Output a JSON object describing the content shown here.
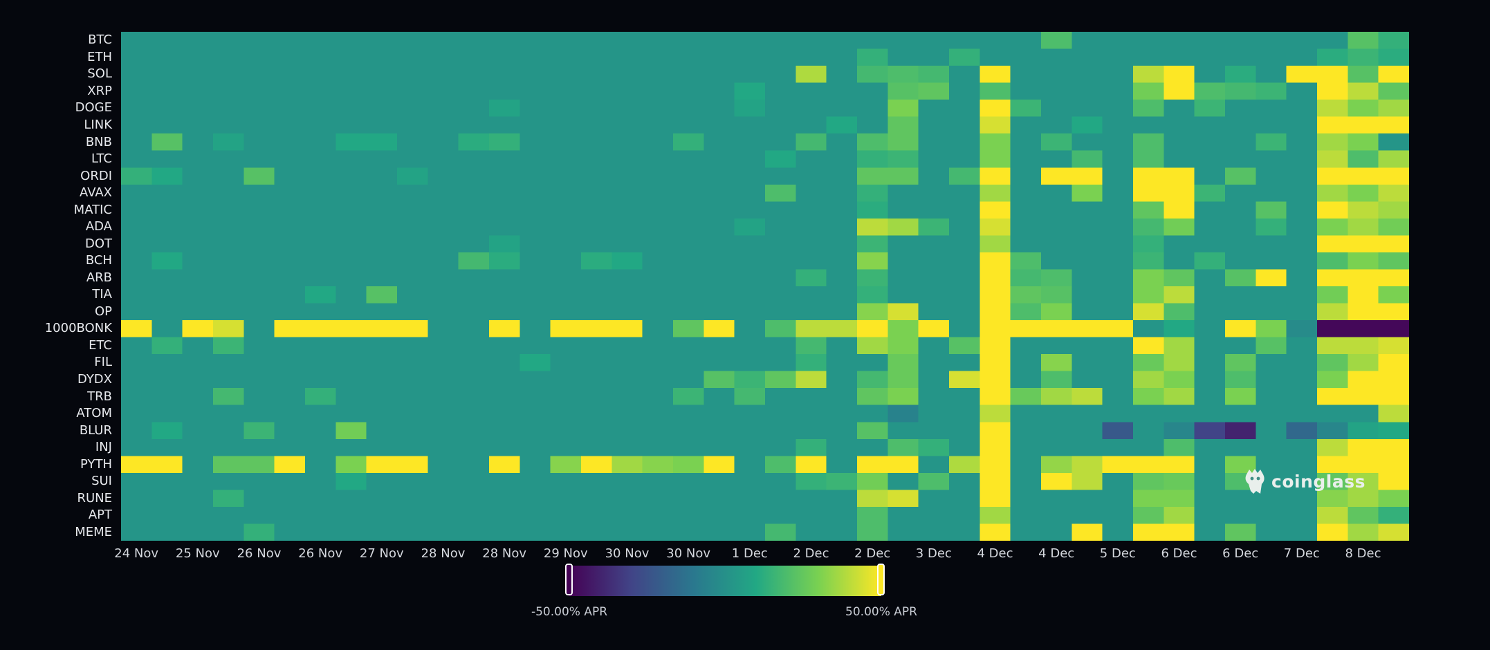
{
  "chart_data": {
    "type": "heatmap",
    "title": "",
    "xlabel": "",
    "ylabel": "",
    "x_tick_labels": [
      "24 Nov",
      "25 Nov",
      "26 Nov",
      "26 Nov",
      "27 Nov",
      "28 Nov",
      "28 Nov",
      "29 Nov",
      "30 Nov",
      "30 Nov",
      "1 Dec",
      "2 Dec",
      "2 Dec",
      "3 Dec",
      "4 Dec",
      "4 Dec",
      "5 Dec",
      "6 Dec",
      "6 Dec",
      "7 Dec",
      "8 Dec"
    ],
    "y_labels": [
      "BTC",
      "ETH",
      "SOL",
      "XRP",
      "DOGE",
      "LINK",
      "BNB",
      "LTC",
      "ORDI",
      "AVAX",
      "MATIC",
      "ADA",
      "DOT",
      "BCH",
      "ARB",
      "TIA",
      "OP",
      "1000BONK",
      "ETC",
      "FIL",
      "DYDX",
      "TRB",
      "ATOM",
      "BLUR",
      "INJ",
      "PYTH",
      "SUI",
      "RUNE",
      "APT",
      "MEME"
    ],
    "columns_count": 42,
    "value_range": [
      -50,
      50
    ],
    "colormap": [
      "#440154",
      "#414487",
      "#2a788e",
      "#22a884",
      "#7ad151",
      "#fde725"
    ],
    "base_value": 2,
    "rows": {
      "BTC": {
        "30": 20,
        "40": 22,
        "41": 14
      },
      "ETH": {
        "24": 14,
        "27": 14,
        "39": 12,
        "40": 16,
        "41": 12
      },
      "SOL": {
        "22": 38,
        "24": 18,
        "25": 20,
        "26": 18,
        "28": 50,
        "33": 40,
        "34": 50,
        "36": 12,
        "38": 50,
        "39": 50,
        "40": 22,
        "41": 50
      },
      "XRP": {
        "20": 10,
        "25": 22,
        "26": 24,
        "28": 20,
        "33": 28,
        "34": 50,
        "35": 20,
        "36": 18,
        "37": 16,
        "39": 50,
        "40": 40,
        "41": 24
      },
      "DOGE": {
        "12": 8,
        "20": 8,
        "25": 30,
        "28": 50,
        "29": 16,
        "33": 20,
        "35": 16,
        "39": 40,
        "40": 30,
        "41": 36
      },
      "LINK": {
        "23": 10,
        "25": 24,
        "28": 44,
        "31": 10,
        "39": 50,
        "40": 50,
        "41": 50
      },
      "BNB": {
        "1": 22,
        "3": 8,
        "7": 10,
        "8": 10,
        "11": 12,
        "12": 14,
        "18": 14,
        "22": 18,
        "24": 20,
        "25": 24,
        "28": 30,
        "30": 16,
        "33": 20,
        "37": 16,
        "39": 36,
        "40": 30
      },
      "LTC": {
        "21": 10,
        "24": 14,
        "25": 16,
        "28": 30,
        "31": 18,
        "33": 20,
        "39": 40,
        "40": 20,
        "41": 36
      },
      "ORDI": {
        "0": 14,
        "1": 10,
        "4": 22,
        "9": 8,
        "24": 24,
        "25": 24,
        "27": 18,
        "28": 50,
        "30": 50,
        "31": 50,
        "33": 50,
        "34": 50,
        "36": 22,
        "39": 50,
        "40": 50,
        "41": 50
      },
      "AVAX": {
        "21": 20,
        "24": 14,
        "28": 36,
        "31": 30,
        "33": 50,
        "34": 50,
        "35": 16,
        "39": 36,
        "40": 30,
        "41": 40
      },
      "MATIC": {
        "24": 12,
        "28": 50,
        "33": 24,
        "34": 50,
        "37": 22,
        "39": 50,
        "40": 40,
        "41": 36
      },
      "ADA": {
        "20": 8,
        "24": 40,
        "25": 36,
        "26": 16,
        "28": 44,
        "33": 18,
        "34": 28,
        "37": 14,
        "39": 30,
        "40": 36,
        "41": 28
      },
      "DOT": {
        "12": 8,
        "24": 16,
        "28": 36,
        "33": 14,
        "39": 50,
        "40": 50,
        "41": 50
      },
      "BCH": {
        "1": 10,
        "11": 18,
        "12": 12,
        "15": 12,
        "16": 10,
        "24": 32,
        "28": 50,
        "29": 20,
        "33": 16,
        "35": 14,
        "39": 20,
        "40": 30,
        "41": 24
      },
      "ARB": {
        "22": 14,
        "24": 16,
        "28": 50,
        "29": 18,
        "30": 20,
        "33": 30,
        "34": 24,
        "36": 22,
        "37": 50,
        "39": 50,
        "40": 50,
        "41": 50
      },
      "TIA": {
        "6": 10,
        "8": 22,
        "24": 14,
        "28": 50,
        "29": 24,
        "30": 22,
        "33": 30,
        "34": 40,
        "39": 28,
        "40": 50,
        "41": 30
      },
      "OP": {
        "24": 32,
        "25": 44,
        "28": 50,
        "29": 20,
        "30": 30,
        "33": 44,
        "34": 20,
        "39": 40,
        "40": 50,
        "41": 50
      },
      "1000BONK": {
        "0": 50,
        "2": 50,
        "3": 44,
        "5": 50,
        "6": 50,
        "7": 50,
        "8": 50,
        "9": 50,
        "12": 50,
        "14": 50,
        "15": 50,
        "16": 50,
        "18": 24,
        "19": 50,
        "21": 20,
        "22": 40,
        "23": 40,
        "24": 50,
        "25": 30,
        "26": 50,
        "28": 50,
        "29": 50,
        "30": 50,
        "31": 50,
        "32": 50,
        "34": 10,
        "36": 50,
        "37": 30,
        "38": -2,
        "39": -48,
        "40": -48,
        "41": -48
      },
      "ETC": {
        "1": 14,
        "3": 16,
        "22": 18,
        "24": 36,
        "25": 30,
        "27": 22,
        "28": 50,
        "33": 50,
        "34": 36,
        "37": 22,
        "39": 40,
        "40": 40,
        "41": 44
      },
      "FIL": {
        "13": 10,
        "22": 14,
        "25": 26,
        "28": 50,
        "30": 32,
        "33": 26,
        "34": 36,
        "36": 24,
        "39": 24,
        "40": 36,
        "41": 50
      },
      "DYDX": {
        "19": 22,
        "20": 16,
        "21": 24,
        "22": 40,
        "24": 18,
        "25": 26,
        "27": 44,
        "28": 50,
        "30": 20,
        "33": 36,
        "34": 30,
        "36": 20,
        "39": 30,
        "40": 50,
        "41": 50
      },
      "TRB": {
        "3": 18,
        "6": 14,
        "18": 16,
        "20": 18,
        "24": 24,
        "25": 30,
        "28": 50,
        "29": 26,
        "30": 36,
        "31": 40,
        "33": 30,
        "34": 36,
        "36": 30,
        "39": 50,
        "40": 50,
        "41": 50
      },
      "ATOM": {
        "25": -6,
        "28": 40,
        "41": 40
      },
      "BLUR": {
        "1": 10,
        "4": 16,
        "7": 28,
        "24": 22,
        "28": 50,
        "32": -22,
        "34": -4,
        "35": -30,
        "36": -40,
        "38": -16,
        "39": -4,
        "40": 8,
        "41": 10
      },
      "INJ": {
        "22": 14,
        "25": 20,
        "26": 14,
        "28": 50,
        "34": 20,
        "39": 40,
        "40": 50,
        "41": 50
      },
      "PYTH": {
        "0": 50,
        "1": 50,
        "3": 24,
        "4": 24,
        "5": 50,
        "7": 30,
        "8": 50,
        "9": 50,
        "12": 50,
        "14": 32,
        "15": 50,
        "16": 36,
        "17": 32,
        "18": 30,
        "19": 50,
        "21": 20,
        "22": 50,
        "24": 50,
        "25": 50,
        "27": 38,
        "28": 50,
        "30": 34,
        "31": 40,
        "32": 50,
        "33": 50,
        "34": 50,
        "36": 30,
        "39": 50,
        "40": 50,
        "41": 50
      },
      "SUI": {
        "7": 10,
        "22": 14,
        "23": 16,
        "24": 28,
        "26": 20,
        "28": 50,
        "30": 50,
        "31": 40,
        "33": 24,
        "34": 26,
        "36": 20,
        "39": 24,
        "40": 36,
        "41": 50
      },
      "RUNE": {
        "3": 14,
        "24": 40,
        "25": 44,
        "28": 50,
        "33": 30,
        "34": 30,
        "39": 32,
        "40": 36,
        "41": 30
      },
      "APT": {
        "24": 20,
        "28": 36,
        "33": 24,
        "34": 36,
        "39": 40,
        "40": 24,
        "41": 14
      },
      "MEME": {
        "4": 14,
        "21": 18,
        "24": 20,
        "28": 50,
        "31": 50,
        "33": 50,
        "34": 50,
        "36": 24,
        "39": 50,
        "40": 36,
        "41": 44
      }
    }
  },
  "colorbar": {
    "min_label": "-50.00% APR",
    "max_label": "50.00% APR"
  },
  "watermark": {
    "text": "coinglass",
    "icon": "coinglass-logo-icon"
  }
}
